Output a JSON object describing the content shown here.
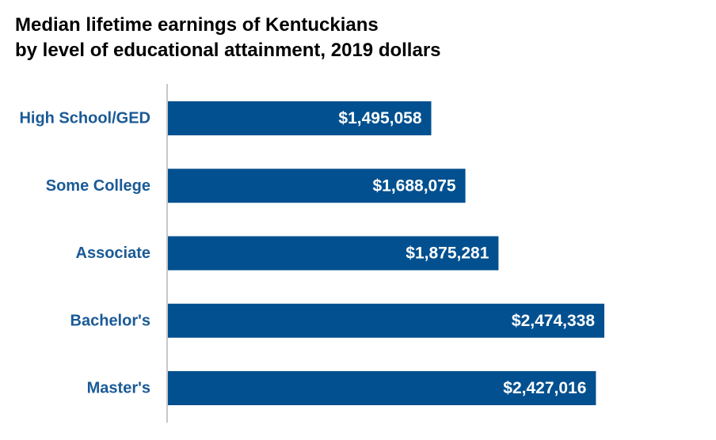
{
  "colors": {
    "bar": "#02508f",
    "category_label": "#1a5a96",
    "value_label": "#ffffff",
    "axis": "#c8c8c8",
    "title": "#000000"
  },
  "chart_data": {
    "type": "bar",
    "orientation": "horizontal",
    "title_lines": [
      "Median lifetime earnings of Kentuckians",
      "by level of educational attainment, 2019 dollars"
    ],
    "categories": [
      "High School/GED",
      "Some College",
      "Associate",
      "Bachelor's",
      "Master's"
    ],
    "values": [
      1495058,
      1688075,
      1875281,
      2474338,
      2427016
    ],
    "data_labels": [
      "$1,495,058",
      "$1,688,075",
      "$1,875,281",
      "$2,474,338",
      "$2,427,016"
    ],
    "xlim": [
      0,
      2474338
    ],
    "grid": false,
    "legend": "none"
  }
}
